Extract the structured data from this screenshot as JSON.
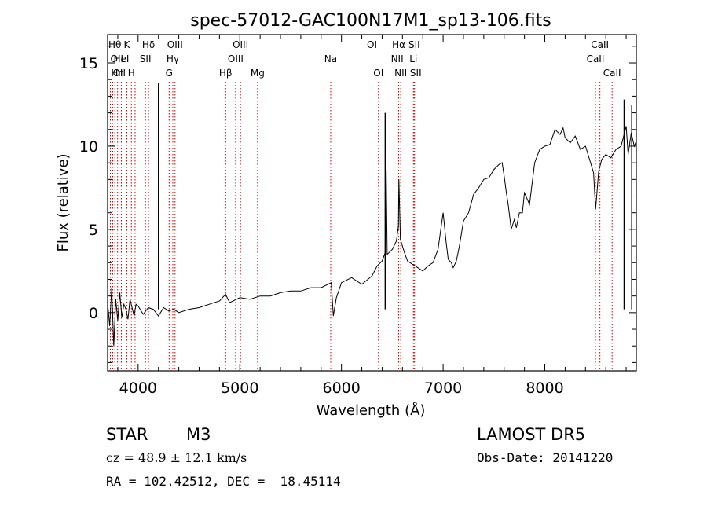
{
  "title": "spec-57012-GAC100N17M1_sp13-106.fits",
  "chart_data": {
    "type": "line",
    "title": "spec-57012-GAC100N17M1_sp13-106.fits",
    "xlabel": "Wavelength (Å)",
    "ylabel": "Flux (relative)",
    "xlim": [
      3700,
      8900
    ],
    "ylim": [
      -3.5,
      16.7
    ],
    "xticks": [
      4000,
      5000,
      6000,
      7000,
      8000
    ],
    "yticks": [
      0,
      5,
      10,
      15
    ],
    "grid": false,
    "series": [
      {
        "x": [
          3700,
          3720,
          3740,
          3760,
          3780,
          3800,
          3820,
          3840,
          3860,
          3880,
          3900,
          3920,
          3940,
          3960,
          3980,
          4000,
          4050,
          4100,
          4150,
          4200,
          4250,
          4300,
          4350,
          4400,
          4500,
          4600,
          4700,
          4800,
          4860,
          4900,
          5000,
          5100,
          5200,
          5300,
          5400,
          5500,
          5600,
          5700,
          5800,
          5900,
          5920,
          5950,
          6000,
          6100,
          6200,
          6300,
          6350,
          6400,
          6430,
          6440,
          6450,
          6500,
          6540,
          6560,
          6565,
          6580,
          6620,
          6650,
          6700,
          6750,
          6800,
          6850,
          6900,
          6950,
          7000,
          7030,
          7050,
          7080,
          7100,
          7130,
          7160,
          7200,
          7250,
          7300,
          7350,
          7400,
          7450,
          7500,
          7550,
          7580,
          7600,
          7620,
          7640,
          7670,
          7700,
          7720,
          7750,
          7780,
          7800,
          7850,
          7900,
          7950,
          8000,
          8050,
          8100,
          8150,
          8180,
          8200,
          8250,
          8300,
          8350,
          8400,
          8450,
          8480,
          8500,
          8530,
          8560,
          8600,
          8650,
          8700,
          8750,
          8800,
          8820,
          8850,
          8880,
          8900
        ],
        "y": [
          0.6,
          -0.8,
          1.5,
          -2.0,
          0.8,
          -0.5,
          1.2,
          -0.3,
          0.5,
          0.2,
          -0.4,
          0.8,
          0.3,
          -0.2,
          0.5,
          0.4,
          -0.1,
          0.3,
          0.2,
          -0.2,
          0.3,
          0.1,
          0.2,
          0.0,
          0.2,
          0.3,
          0.5,
          0.7,
          1.1,
          0.6,
          0.9,
          0.8,
          1.0,
          1.0,
          1.2,
          1.3,
          1.3,
          1.5,
          1.5,
          1.8,
          -0.2,
          0.9,
          1.8,
          2.1,
          1.7,
          2.2,
          2.8,
          3.1,
          3.6,
          8.6,
          3.5,
          3.8,
          4.3,
          5.2,
          8.0,
          4.4,
          3.6,
          3.1,
          2.9,
          2.7,
          2.5,
          2.8,
          3.0,
          3.8,
          6.0,
          4.2,
          3.2,
          3.0,
          2.7,
          3.1,
          4.0,
          5.5,
          6.0,
          7.1,
          7.5,
          8.0,
          8.1,
          8.6,
          8.9,
          9.0,
          8.2,
          7.3,
          6.5,
          5.0,
          5.6,
          5.1,
          6.0,
          6.0,
          7.2,
          6.5,
          9.0,
          9.8,
          10.0,
          10.1,
          11.0,
          10.7,
          11.1,
          10.5,
          10.2,
          10.6,
          9.8,
          10.0,
          9.0,
          8.4,
          6.2,
          8.5,
          9.2,
          9.5,
          9.3,
          9.8,
          10.0,
          11.2,
          9.5,
          10.8,
          10.0,
          10.3
        ]
      }
    ],
    "spikes": [
      {
        "x": 4200,
        "y": 13.8
      },
      {
        "x": 6430,
        "y": 12.0
      },
      {
        "x": 8780,
        "y": 12.8
      },
      {
        "x": 8855,
        "y": 12.5
      }
    ],
    "line_markers": [
      {
        "x": 3727,
        "labels": [
          "OII"
        ],
        "row": 1,
        "anchor": "start"
      },
      {
        "x": 3750,
        "labels": [
          "OII"
        ],
        "row": 2,
        "anchor": "start"
      },
      {
        "x": 3771,
        "labels": [
          "Hθ"
        ],
        "row": 0,
        "anchor": "middle"
      },
      {
        "x": 3798,
        "labels": [
          "Hη"
        ],
        "row": 2,
        "anchor": "middle"
      },
      {
        "x": 3835,
        "labels": [
          "HeI"
        ],
        "row": 1,
        "anchor": "middle"
      },
      {
        "x": 3889,
        "labels": [
          "K"
        ],
        "row": 0,
        "anchor": "middle"
      },
      {
        "x": 3934,
        "labels": [
          "H"
        ],
        "row": 2,
        "anchor": "middle"
      },
      {
        "x": 3970,
        "labels": [],
        "row": 0,
        "anchor": "middle"
      },
      {
        "x": 4072,
        "labels": [
          "SII"
        ],
        "row": 1,
        "anchor": "middle"
      },
      {
        "x": 4102,
        "labels": [
          "Hδ"
        ],
        "row": 0,
        "anchor": "middle"
      },
      {
        "x": 4305,
        "labels": [
          "G"
        ],
        "row": 2,
        "anchor": "middle"
      },
      {
        "x": 4341,
        "labels": [
          "Hγ"
        ],
        "row": 1,
        "anchor": "middle"
      },
      {
        "x": 4363,
        "labels": [
          "OIII"
        ],
        "row": 0,
        "anchor": "middle"
      },
      {
        "x": 4861,
        "labels": [
          "Hβ"
        ],
        "row": 2,
        "anchor": "middle"
      },
      {
        "x": 4959,
        "labels": [
          "OIII"
        ],
        "row": 1,
        "anchor": "middle"
      },
      {
        "x": 5007,
        "labels": [
          "OIII"
        ],
        "row": 0,
        "anchor": "middle"
      },
      {
        "x": 5175,
        "labels": [
          "Mg"
        ],
        "row": 2,
        "anchor": "middle"
      },
      {
        "x": 5894,
        "labels": [
          "Na"
        ],
        "row": 1,
        "anchor": "middle"
      },
      {
        "x": 6300,
        "labels": [
          "OI"
        ],
        "row": 0,
        "anchor": "middle"
      },
      {
        "x": 6364,
        "labels": [
          "OI"
        ],
        "row": 2,
        "anchor": "middle"
      },
      {
        "x": 6548,
        "labels": [
          "NII"
        ],
        "row": 1,
        "anchor": "middle"
      },
      {
        "x": 6563,
        "labels": [
          "Hα"
        ],
        "row": 0,
        "anchor": "middle"
      },
      {
        "x": 6583,
        "labels": [
          "NII"
        ],
        "row": 2,
        "anchor": "middle"
      },
      {
        "x": 6708,
        "labels": [
          "Li"
        ],
        "row": 1,
        "anchor": "middle"
      },
      {
        "x": 6716,
        "labels": [
          "SII"
        ],
        "row": 0,
        "anchor": "middle"
      },
      {
        "x": 6731,
        "labels": [
          "SII"
        ],
        "row": 2,
        "anchor": "middle"
      },
      {
        "x": 8498,
        "labels": [
          "CaII"
        ],
        "row": 1,
        "anchor": "middle"
      },
      {
        "x": 8542,
        "labels": [
          "CaII"
        ],
        "row": 0,
        "anchor": "middle"
      },
      {
        "x": 8662,
        "labels": [
          "CaII"
        ],
        "row": 2,
        "anchor": "middle"
      }
    ],
    "marker_color": "#cc0000"
  },
  "info": {
    "class": "STAR",
    "subclass": "M3",
    "survey": "LAMOST DR5",
    "cz": "cz = 48.9 ± 12.1 km/s",
    "obs_date": "Obs-Date: 20141220",
    "radec": "RA = 102.42512, DEC =  18.45114"
  }
}
